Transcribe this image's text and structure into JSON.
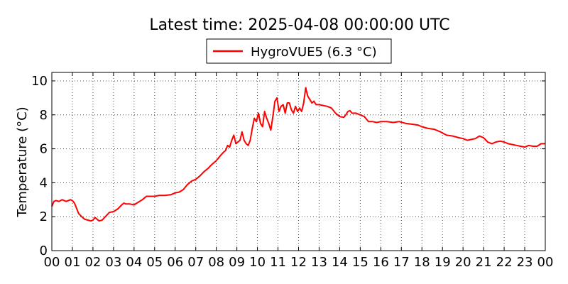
{
  "chart_data": {
    "type": "line",
    "title": "Latest time: 2025-04-08 00:00:00 UTC",
    "xlabel": "",
    "ylabel": "Temperature (°C)",
    "xlim": [
      0,
      24
    ],
    "ylim": [
      0,
      10.5
    ],
    "x_ticks": [
      0,
      1,
      2,
      3,
      4,
      5,
      6,
      7,
      8,
      9,
      10,
      11,
      12,
      13,
      14,
      15,
      16,
      17,
      18,
      19,
      20,
      21,
      22,
      23,
      24
    ],
    "x_tick_labels": [
      "00",
      "01",
      "02",
      "03",
      "04",
      "05",
      "06",
      "07",
      "08",
      "09",
      "10",
      "11",
      "12",
      "13",
      "14",
      "15",
      "16",
      "17",
      "18",
      "19",
      "20",
      "21",
      "22",
      "23",
      "00"
    ],
    "y_ticks": [
      0,
      2,
      4,
      6,
      8,
      10
    ],
    "y_tick_labels": [
      "0",
      "2",
      "4",
      "6",
      "8",
      "10"
    ],
    "grid": true,
    "legend_position": "top-center",
    "series": [
      {
        "name": "HygroVUE5 (6.3 °C)",
        "color": "#ff0000",
        "x": [
          0,
          0.1,
          0.2,
          0.35,
          0.5,
          0.7,
          0.9,
          1.0,
          1.1,
          1.2,
          1.3,
          1.45,
          1.6,
          1.75,
          1.9,
          2.0,
          2.1,
          2.2,
          2.3,
          2.45,
          2.6,
          2.8,
          3.0,
          3.2,
          3.4,
          3.5,
          3.6,
          3.8,
          4.0,
          4.2,
          4.4,
          4.6,
          4.8,
          5.0,
          5.2,
          5.5,
          5.8,
          6.0,
          6.2,
          6.4,
          6.6,
          6.8,
          7.0,
          7.2,
          7.4,
          7.6,
          7.8,
          8.0,
          8.2,
          8.35,
          8.45,
          8.55,
          8.65,
          8.75,
          8.85,
          8.95,
          9.05,
          9.15,
          9.25,
          9.35,
          9.45,
          9.55,
          9.65,
          9.75,
          9.85,
          9.95,
          10.05,
          10.15,
          10.25,
          10.35,
          10.45,
          10.55,
          10.65,
          10.75,
          10.85,
          10.95,
          11.05,
          11.15,
          11.25,
          11.35,
          11.45,
          11.55,
          11.65,
          11.75,
          11.85,
          11.95,
          12.05,
          12.15,
          12.25,
          12.35,
          12.45,
          12.55,
          12.65,
          12.75,
          12.85,
          13.0,
          13.2,
          13.4,
          13.6,
          13.8,
          14.0,
          14.2,
          14.3,
          14.4,
          14.5,
          14.6,
          14.8,
          15.0,
          15.2,
          15.4,
          15.6,
          15.8,
          16.0,
          16.3,
          16.6,
          16.9,
          17.2,
          17.5,
          17.8,
          18.0,
          18.3,
          18.6,
          18.9,
          19.2,
          19.5,
          19.8,
          20.0,
          20.2,
          20.4,
          20.6,
          20.8,
          21.0,
          21.2,
          21.4,
          21.6,
          21.8,
          22.0,
          22.2,
          22.4,
          22.6,
          22.8,
          23.0,
          23.2,
          23.4,
          23.6,
          23.8,
          24.0
        ],
        "y": [
          2.6,
          2.9,
          2.95,
          2.9,
          3.0,
          2.9,
          3.0,
          2.95,
          2.8,
          2.5,
          2.2,
          2.0,
          1.85,
          1.8,
          1.75,
          1.8,
          1.95,
          1.85,
          1.75,
          1.8,
          2.0,
          2.25,
          2.3,
          2.45,
          2.7,
          2.8,
          2.75,
          2.75,
          2.7,
          2.85,
          3.0,
          3.2,
          3.2,
          3.2,
          3.25,
          3.25,
          3.3,
          3.4,
          3.45,
          3.6,
          3.9,
          4.1,
          4.2,
          4.4,
          4.65,
          4.85,
          5.1,
          5.3,
          5.6,
          5.8,
          5.9,
          6.2,
          6.1,
          6.5,
          6.8,
          6.3,
          6.4,
          6.5,
          7.0,
          6.5,
          6.3,
          6.2,
          6.5,
          7.2,
          7.8,
          7.6,
          8.1,
          7.5,
          7.3,
          8.2,
          7.8,
          7.5,
          7.1,
          7.9,
          8.8,
          9.0,
          8.2,
          8.5,
          8.6,
          8.1,
          8.7,
          8.7,
          8.3,
          8.1,
          8.5,
          8.2,
          8.4,
          8.2,
          8.7,
          9.6,
          9.1,
          8.9,
          8.7,
          8.8,
          8.6,
          8.6,
          8.55,
          8.5,
          8.4,
          8.1,
          7.9,
          7.85,
          8.0,
          8.2,
          8.25,
          8.1,
          8.1,
          8.0,
          7.9,
          7.6,
          7.6,
          7.55,
          7.6,
          7.6,
          7.55,
          7.6,
          7.5,
          7.45,
          7.4,
          7.3,
          7.2,
          7.15,
          7.0,
          6.8,
          6.75,
          6.65,
          6.6,
          6.5,
          6.55,
          6.6,
          6.75,
          6.65,
          6.4,
          6.3,
          6.4,
          6.45,
          6.4,
          6.3,
          6.25,
          6.2,
          6.15,
          6.1,
          6.2,
          6.15,
          6.15,
          6.3,
          6.3
        ]
      }
    ]
  }
}
